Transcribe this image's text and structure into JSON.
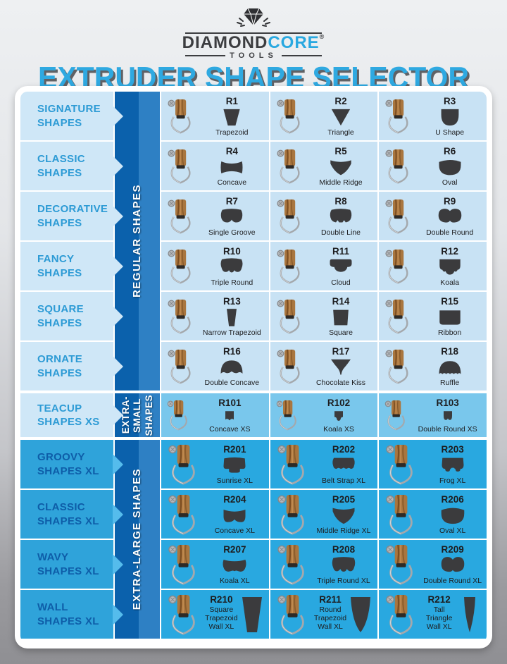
{
  "logo": {
    "brand_primary": "DIAMOND",
    "brand_secondary": "CORE",
    "registered": "®",
    "subtitle": "TOOLS",
    "icon": "diamond-icon"
  },
  "title": "EXTRUDER SHAPE SELECTOR",
  "colors": {
    "accent_blue": "#29a8e0",
    "band_dark_blue": "#0b61ac",
    "band_light_blue": "#2e80c4",
    "regular_cell": "#c8e2f4",
    "regular_sidebar": "#cfe7f7",
    "xs_cell": "#79c7ec",
    "xl_cell": "#29a8e0",
    "xl_label_text": "#0e5da8",
    "regular_label_text": "#2d9bd5",
    "shape_fill": "#3b3b3d",
    "title_shadow": "#606165"
  },
  "sections": [
    {
      "id": "regular",
      "band_lines": [
        "REGULAR SHAPES"
      ],
      "rows": [
        {
          "category": "SIGNATURE SHAPES",
          "items": [
            {
              "code": "R1",
              "name": "Trapezoid",
              "shape": "trapezoid"
            },
            {
              "code": "R2",
              "name": "Triangle",
              "shape": "triangle"
            },
            {
              "code": "R3",
              "name": "U Shape",
              "shape": "ushape"
            }
          ]
        },
        {
          "category": "CLASSIC SHAPES",
          "items": [
            {
              "code": "R4",
              "name": "Concave",
              "shape": "concave"
            },
            {
              "code": "R5",
              "name": "Middle Ridge",
              "shape": "middleridge"
            },
            {
              "code": "R6",
              "name": "Oval",
              "shape": "oval"
            }
          ]
        },
        {
          "category": "DECORATIVE SHAPES",
          "items": [
            {
              "code": "R7",
              "name": "Single Groove",
              "shape": "singlegroove"
            },
            {
              "code": "R8",
              "name": "Double Line",
              "shape": "doubleline"
            },
            {
              "code": "R9",
              "name": "Double Round",
              "shape": "doubleround"
            }
          ]
        },
        {
          "category": "FANCY SHAPES",
          "items": [
            {
              "code": "R10",
              "name": "Triple Round",
              "shape": "tripleround"
            },
            {
              "code": "R11",
              "name": "Cloud",
              "shape": "cloud"
            },
            {
              "code": "R12",
              "name": "Koala",
              "shape": "koala"
            }
          ]
        },
        {
          "category": "SQUARE SHAPES",
          "items": [
            {
              "code": "R13",
              "name": "Narrow Trapezoid",
              "shape": "narrowtrapezoid"
            },
            {
              "code": "R14",
              "name": "Square",
              "shape": "square"
            },
            {
              "code": "R15",
              "name": "Ribbon",
              "shape": "ribbon"
            }
          ]
        },
        {
          "category": "ORNATE SHAPES",
          "items": [
            {
              "code": "R16",
              "name": "Double Concave",
              "shape": "doubleconcave"
            },
            {
              "code": "R17",
              "name": "Chocolate Kiss",
              "shape": "chocolatekiss"
            },
            {
              "code": "R18",
              "name": "Ruffle",
              "shape": "ruffle"
            }
          ]
        }
      ]
    },
    {
      "id": "xs",
      "band_lines": [
        "EXTRA-",
        "SMALL",
        "SHAPES"
      ],
      "rows": [
        {
          "category": "TEACUP SHAPES XS",
          "items": [
            {
              "code": "R101",
              "name": "Concave XS",
              "shape": "concavexs"
            },
            {
              "code": "R102",
              "name": "Koala XS",
              "shape": "koalaxs"
            },
            {
              "code": "R103",
              "name": "Double Round XS",
              "shape": "doubleroundxs"
            }
          ]
        }
      ]
    },
    {
      "id": "xl",
      "band_lines": [
        "EXTRA-LARGE SHAPES"
      ],
      "rows": [
        {
          "category": "GROOVY SHAPES XL",
          "items": [
            {
              "code": "R201",
              "name": "Sunrise XL",
              "shape": "sunrise"
            },
            {
              "code": "R202",
              "name": "Belt Strap XL",
              "shape": "beltstrap"
            },
            {
              "code": "R203",
              "name": "Frog XL",
              "shape": "frog"
            }
          ]
        },
        {
          "category": "CLASSIC SHAPES XL",
          "items": [
            {
              "code": "R204",
              "name": "Concave XL",
              "shape": "concavexl"
            },
            {
              "code": "R205",
              "name": "Middle Ridge XL",
              "shape": "middleridgexl"
            },
            {
              "code": "R206",
              "name": "Oval XL",
              "shape": "ovalxl"
            }
          ]
        },
        {
          "category": "WAVY SHAPES XL",
          "items": [
            {
              "code": "R207",
              "name": "Koala XL",
              "shape": "koalaxl"
            },
            {
              "code": "R208",
              "name": "Triple Round XL",
              "shape": "triplroundxl"
            },
            {
              "code": "R209",
              "name": "Double Round XL",
              "shape": "doubleroundxl"
            }
          ]
        },
        {
          "category": "WALL SHAPES XL",
          "items": [
            {
              "code": "R210",
              "name": "Square Trapezoid Wall XL",
              "shape": "squaretrapwall"
            },
            {
              "code": "R211",
              "name": "Round Trapezoid Wall XL",
              "shape": "roundtrapwall"
            },
            {
              "code": "R212",
              "name": "Tall Triangle Wall XL",
              "shape": "talltrianglewall"
            }
          ]
        }
      ]
    }
  ]
}
